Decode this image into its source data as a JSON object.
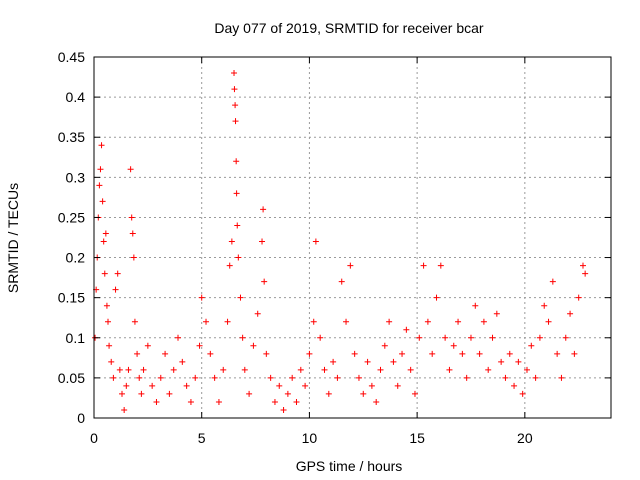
{
  "chart_data": {
    "type": "scatter",
    "title": "Day 077 of 2019, SRMTID for receiver bcar",
    "xlabel": "GPS time / hours",
    "ylabel": "SRMTID / TECUs",
    "xlim": [
      0,
      24
    ],
    "ylim": [
      0,
      0.45
    ],
    "xticks": [
      0,
      5,
      10,
      15,
      20
    ],
    "xtick_labels": [
      "0",
      "5",
      "10",
      "15",
      "20"
    ],
    "yticks": [
      0,
      0.05,
      0.1,
      0.15,
      0.2,
      0.25,
      0.3,
      0.35,
      0.4,
      0.45
    ],
    "ytick_labels": [
      "0",
      "0.05",
      "0.1",
      "0.15",
      "0.2",
      "0.25",
      "0.3",
      "0.35",
      "0.4",
      "0.45"
    ],
    "grid": true,
    "marker": "+",
    "color": "#ff0000",
    "series": [
      {
        "name": "SRMTID",
        "points": [
          [
            0.05,
            0.1
          ],
          [
            0.1,
            0.16
          ],
          [
            0.15,
            0.2
          ],
          [
            0.2,
            0.25
          ],
          [
            0.25,
            0.29
          ],
          [
            0.3,
            0.31
          ],
          [
            0.35,
            0.34
          ],
          [
            0.4,
            0.27
          ],
          [
            0.45,
            0.22
          ],
          [
            0.5,
            0.18
          ],
          [
            0.55,
            0.23
          ],
          [
            0.6,
            0.14
          ],
          [
            0.65,
            0.12
          ],
          [
            0.7,
            0.09
          ],
          [
            0.8,
            0.07
          ],
          [
            0.9,
            0.05
          ],
          [
            1.0,
            0.16
          ],
          [
            1.1,
            0.18
          ],
          [
            1.2,
            0.06
          ],
          [
            1.3,
            0.03
          ],
          [
            1.4,
            0.01
          ],
          [
            1.5,
            0.04
          ],
          [
            1.6,
            0.06
          ],
          [
            1.7,
            0.31
          ],
          [
            1.75,
            0.25
          ],
          [
            1.8,
            0.23
          ],
          [
            1.85,
            0.2
          ],
          [
            1.9,
            0.12
          ],
          [
            2.0,
            0.08
          ],
          [
            2.1,
            0.05
          ],
          [
            2.2,
            0.03
          ],
          [
            2.3,
            0.06
          ],
          [
            2.5,
            0.09
          ],
          [
            2.7,
            0.04
          ],
          [
            2.9,
            0.02
          ],
          [
            3.1,
            0.05
          ],
          [
            3.3,
            0.08
          ],
          [
            3.5,
            0.03
          ],
          [
            3.7,
            0.06
          ],
          [
            3.9,
            0.1
          ],
          [
            4.1,
            0.07
          ],
          [
            4.3,
            0.04
          ],
          [
            4.5,
            0.02
          ],
          [
            4.7,
            0.05
          ],
          [
            4.9,
            0.09
          ],
          [
            5.0,
            0.15
          ],
          [
            5.2,
            0.12
          ],
          [
            5.4,
            0.08
          ],
          [
            5.6,
            0.05
          ],
          [
            5.8,
            0.02
          ],
          [
            6.0,
            0.06
          ],
          [
            6.2,
            0.12
          ],
          [
            6.3,
            0.19
          ],
          [
            6.4,
            0.22
          ],
          [
            6.5,
            0.43
          ],
          [
            6.52,
            0.41
          ],
          [
            6.55,
            0.39
          ],
          [
            6.57,
            0.37
          ],
          [
            6.6,
            0.32
          ],
          [
            6.62,
            0.28
          ],
          [
            6.65,
            0.24
          ],
          [
            6.7,
            0.2
          ],
          [
            6.8,
            0.15
          ],
          [
            6.9,
            0.1
          ],
          [
            7.0,
            0.06
          ],
          [
            7.2,
            0.03
          ],
          [
            7.4,
            0.09
          ],
          [
            7.6,
            0.13
          ],
          [
            7.8,
            0.22
          ],
          [
            7.85,
            0.26
          ],
          [
            7.9,
            0.17
          ],
          [
            8.0,
            0.08
          ],
          [
            8.2,
            0.05
          ],
          [
            8.4,
            0.02
          ],
          [
            8.6,
            0.04
          ],
          [
            8.8,
            0.01
          ],
          [
            9.0,
            0.03
          ],
          [
            9.2,
            0.05
          ],
          [
            9.4,
            0.02
          ],
          [
            9.6,
            0.06
          ],
          [
            9.8,
            0.04
          ],
          [
            10.0,
            0.08
          ],
          [
            10.2,
            0.12
          ],
          [
            10.3,
            0.22
          ],
          [
            10.5,
            0.1
          ],
          [
            10.7,
            0.06
          ],
          [
            10.9,
            0.03
          ],
          [
            11.1,
            0.07
          ],
          [
            11.3,
            0.05
          ],
          [
            11.5,
            0.17
          ],
          [
            11.7,
            0.12
          ],
          [
            11.9,
            0.19
          ],
          [
            12.1,
            0.08
          ],
          [
            12.3,
            0.05
          ],
          [
            12.5,
            0.03
          ],
          [
            12.7,
            0.07
          ],
          [
            12.9,
            0.04
          ],
          [
            13.1,
            0.02
          ],
          [
            13.3,
            0.06
          ],
          [
            13.5,
            0.09
          ],
          [
            13.7,
            0.12
          ],
          [
            13.9,
            0.07
          ],
          [
            14.1,
            0.04
          ],
          [
            14.3,
            0.08
          ],
          [
            14.5,
            0.11
          ],
          [
            14.7,
            0.06
          ],
          [
            14.9,
            0.03
          ],
          [
            15.1,
            0.1
          ],
          [
            15.3,
            0.19
          ],
          [
            15.5,
            0.12
          ],
          [
            15.7,
            0.08
          ],
          [
            15.9,
            0.15
          ],
          [
            16.1,
            0.19
          ],
          [
            16.3,
            0.1
          ],
          [
            16.5,
            0.06
          ],
          [
            16.7,
            0.09
          ],
          [
            16.9,
            0.12
          ],
          [
            17.1,
            0.08
          ],
          [
            17.3,
            0.05
          ],
          [
            17.5,
            0.1
          ],
          [
            17.7,
            0.14
          ],
          [
            17.9,
            0.08
          ],
          [
            18.1,
            0.12
          ],
          [
            18.3,
            0.06
          ],
          [
            18.5,
            0.1
          ],
          [
            18.7,
            0.13
          ],
          [
            18.9,
            0.07
          ],
          [
            19.1,
            0.05
          ],
          [
            19.3,
            0.08
          ],
          [
            19.5,
            0.04
          ],
          [
            19.7,
            0.07
          ],
          [
            19.9,
            0.03
          ],
          [
            20.1,
            0.06
          ],
          [
            20.3,
            0.09
          ],
          [
            20.5,
            0.05
          ],
          [
            20.7,
            0.1
          ],
          [
            20.9,
            0.14
          ],
          [
            21.1,
            0.12
          ],
          [
            21.3,
            0.17
          ],
          [
            21.5,
            0.08
          ],
          [
            21.7,
            0.05
          ],
          [
            21.9,
            0.1
          ],
          [
            22.1,
            0.13
          ],
          [
            22.3,
            0.08
          ],
          [
            22.5,
            0.15
          ],
          [
            22.7,
            0.19
          ],
          [
            22.8,
            0.18
          ]
        ]
      }
    ]
  }
}
